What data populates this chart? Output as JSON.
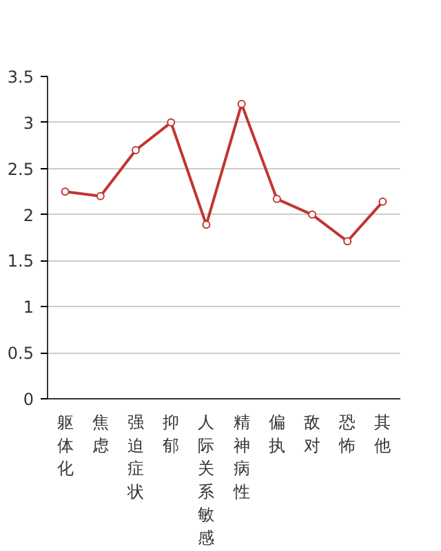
{
  "chart_data": {
    "type": "line",
    "categories": [
      "躯体化",
      "焦虑",
      "强迫症状",
      "抑郁",
      "人际关系敏感",
      "精神病性",
      "偏执",
      "敌对",
      "恐怖",
      "其他"
    ],
    "series": [
      {
        "color": "#c23531",
        "values": [
          2.25,
          2.2,
          2.7,
          3.0,
          1.89,
          3.2,
          2.17,
          2.0,
          1.71,
          2.14
        ]
      }
    ],
    "ylim": [
      0,
      3.5
    ],
    "yticks": [
      0,
      0.5,
      1,
      1.5,
      2,
      2.5,
      3,
      3.5
    ],
    "grid": "y",
    "marker": "circle",
    "line_style": "solid"
  }
}
